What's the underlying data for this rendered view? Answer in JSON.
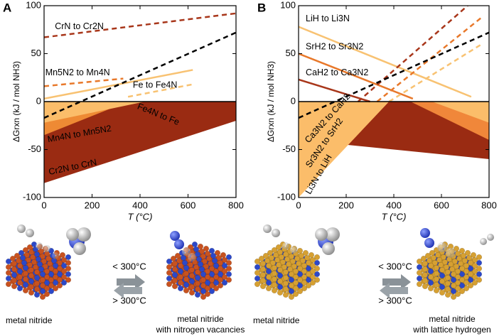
{
  "chart_data": [
    {
      "type": "line",
      "panel_label": "A",
      "ylabel": "ΔGrxn (kJ / mol NH3)",
      "xlabel": "T (°C)",
      "xlim": [
        0,
        800
      ],
      "ylim": [
        -100,
        100
      ],
      "xticks": [
        0,
        200,
        400,
        600,
        800
      ],
      "yticks": [
        -100,
        -50,
        0,
        50,
        100
      ],
      "series": [
        {
          "name": "Cr2N to CrN",
          "style": "area",
          "color": "#9a2b12",
          "x": [
            0,
            800
          ],
          "values": [
            -85,
            -20
          ]
        },
        {
          "name": "Mn4N to Mn5N2",
          "style": "area",
          "color": "#ee8a34",
          "x": [
            0,
            350
          ],
          "values": [
            -35,
            0
          ]
        },
        {
          "name": "Fe4N to Fe",
          "style": "area",
          "color": "#fbbd6a",
          "x": [
            0,
            420
          ],
          "values": [
            -22,
            0
          ]
        },
        {
          "name": "CrN to Cr2N",
          "style": "dashed",
          "color": "#a8361a",
          "x": [
            0,
            800
          ],
          "values": [
            67,
            92
          ]
        },
        {
          "name": "Mn5N2 to Mn4N",
          "style": "dashed",
          "color": "#e8782a",
          "x": [
            0,
            330
          ],
          "values": [
            16,
            24
          ]
        },
        {
          "name": "Fe to Fe4N",
          "style": "solid",
          "color": "#f8c272",
          "x": [
            0,
            620
          ],
          "values": [
            3,
            33
          ]
        },
        {
          "style": "dashed",
          "color": "#f8c272",
          "x": [
            350,
            620
          ],
          "values": [
            5,
            18
          ]
        },
        {
          "style": "dashed",
          "color": "#000000",
          "x": [
            0,
            800
          ],
          "values": [
            -17,
            72
          ]
        }
      ]
    },
    {
      "type": "line",
      "panel_label": "B",
      "ylabel": "ΔGrxn (kJ / mol NH3)",
      "xlabel": "T (°C)",
      "xlim": [
        0,
        800
      ],
      "ylim": [
        -100,
        100
      ],
      "xticks": [
        0,
        200,
        400,
        600,
        800
      ],
      "yticks": [
        -100,
        -50,
        0,
        50,
        100
      ],
      "series": [
        {
          "name": "Ca3N2 to CaH2",
          "style": "area",
          "color": "#9a2b12",
          "x": [
            0,
            800
          ],
          "values": [
            -40,
            -60
          ]
        },
        {
          "name": "Sr3N2 to SrH2",
          "style": "area",
          "color": "#f0873a",
          "x": [
            0,
            330,
            470,
            800
          ],
          "values": [
            -75,
            0,
            0,
            -40
          ]
        },
        {
          "name": "Li3N to LiH",
          "style": "area",
          "color": "#fbbd6a",
          "x": [
            0,
            380,
            560,
            800
          ],
          "values": [
            -100,
            0,
            0,
            -22
          ]
        },
        {
          "name": "LiH to Li3N",
          "style": "solid",
          "color": "#f8c272",
          "x": [
            0,
            725
          ],
          "values": [
            78,
            5
          ]
        },
        {
          "name": "SrH2 to Sr3N2",
          "style": "solid",
          "color": "#e8782a",
          "x": [
            0,
            480
          ],
          "values": [
            50,
            3
          ]
        },
        {
          "name": "CaH2 to Ca3N2",
          "style": "solid",
          "color": "#a8361a",
          "x": [
            0,
            300
          ],
          "values": [
            23,
            0
          ]
        },
        {
          "style": "dashed",
          "color": "#a8361a",
          "x": [
            250,
            710
          ],
          "values": [
            0,
            100
          ]
        },
        {
          "style": "dashed",
          "color": "#e8782a",
          "x": [
            330,
            770
          ],
          "values": [
            0,
            88
          ]
        },
        {
          "style": "dashed",
          "color": "#f8c272",
          "x": [
            380,
            770
          ],
          "values": [
            0,
            60
          ]
        },
        {
          "style": "dashed",
          "color": "#000000",
          "x": [
            0,
            800
          ],
          "values": [
            -17,
            72
          ]
        }
      ]
    }
  ],
  "illustrations": {
    "left": {
      "low_temp": "< 300°C",
      "high_temp": "> 300°C",
      "start_label": "metal nitride",
      "end_label_1": "metal nitride",
      "end_label_2": "with nitrogen vacancies"
    },
    "right": {
      "low_temp": "< 300°C",
      "high_temp": "> 300°C",
      "start_label": "metal nitride",
      "end_label_1": "metal nitride",
      "end_label_2": "with lattice hydrogen"
    }
  }
}
